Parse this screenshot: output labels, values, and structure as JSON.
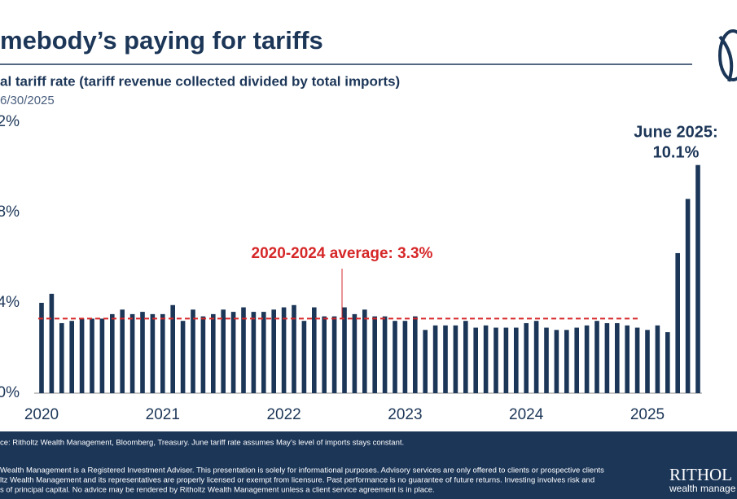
{
  "chart_data": {
    "type": "bar",
    "title": "mebody’s paying for tariffs",
    "subtitle": "al tariff rate (tariff revenue collected divided by total imports)",
    "date_note": "6/30/2025",
    "x": [
      "2020-01",
      "2020-02",
      "2020-03",
      "2020-04",
      "2020-05",
      "2020-06",
      "2020-07",
      "2020-08",
      "2020-09",
      "2020-10",
      "2020-11",
      "2020-12",
      "2021-01",
      "2021-02",
      "2021-03",
      "2021-04",
      "2021-05",
      "2021-06",
      "2021-07",
      "2021-08",
      "2021-09",
      "2021-10",
      "2021-11",
      "2021-12",
      "2022-01",
      "2022-02",
      "2022-03",
      "2022-04",
      "2022-05",
      "2022-06",
      "2022-07",
      "2022-08",
      "2022-09",
      "2022-10",
      "2022-11",
      "2022-12",
      "2023-01",
      "2023-02",
      "2023-03",
      "2023-04",
      "2023-05",
      "2023-06",
      "2023-07",
      "2023-08",
      "2023-09",
      "2023-10",
      "2023-11",
      "2023-12",
      "2024-01",
      "2024-02",
      "2024-03",
      "2024-04",
      "2024-05",
      "2024-06",
      "2024-07",
      "2024-08",
      "2024-09",
      "2024-10",
      "2024-11",
      "2024-12",
      "2025-01",
      "2025-02",
      "2025-03",
      "2025-04",
      "2025-05",
      "2025-06"
    ],
    "values": [
      4.0,
      4.4,
      3.1,
      3.2,
      3.3,
      3.3,
      3.3,
      3.5,
      3.7,
      3.5,
      3.6,
      3.5,
      3.5,
      3.9,
      3.2,
      3.7,
      3.4,
      3.5,
      3.7,
      3.6,
      3.8,
      3.6,
      3.6,
      3.7,
      3.8,
      3.9,
      3.2,
      3.8,
      3.4,
      3.4,
      3.8,
      3.5,
      3.7,
      3.4,
      3.4,
      3.2,
      3.2,
      3.4,
      2.8,
      3.0,
      3.0,
      3.0,
      3.2,
      2.9,
      3.0,
      2.9,
      2.9,
      2.9,
      3.1,
      3.2,
      2.9,
      2.8,
      2.8,
      2.9,
      3.0,
      3.2,
      3.1,
      3.1,
      3.0,
      2.9,
      2.8,
      3.0,
      2.7,
      6.2,
      8.6,
      10.1
    ],
    "color": "#1c3658",
    "xticks": [
      {
        "value": 0,
        "label": "2020"
      },
      {
        "value": 12,
        "label": "2021"
      },
      {
        "value": 24,
        "label": "2022"
      },
      {
        "value": 36,
        "label": "2023"
      },
      {
        "value": 48,
        "label": "2024"
      },
      {
        "value": 60,
        "label": "2025"
      }
    ],
    "ylim": [
      0,
      12
    ],
    "yticks": [
      {
        "value": 0,
        "label": "0%"
      },
      {
        "value": 4,
        "label": "4%"
      },
      {
        "value": 8,
        "label": "8%"
      },
      {
        "value": 12,
        "label": "12%"
      }
    ],
    "average": {
      "value": 3.3,
      "label": "2020-2024 average: 3.3%",
      "color": "#d62728",
      "start": 0,
      "end": 59
    },
    "callout": [
      "June 2025:",
      "10.1%"
    ],
    "source": "ce: Ritholtz Wealth Management, Bloomberg, Treasury. June tariff rate assumes May’s level of imports stays constant.",
    "disclaimer": [
      "Wealth Management is a Registered Investment Adviser. This presentation is solely for informational purposes. Advisory services are only offered to clients or prospective clients",
      "ltz Wealth Management and its representatives are properly licensed or exempt from licensure. Past performance is no guarantee of future returns. Investing involves risk and",
      "s of principal capital. No advice may be rendered by Ritholtz Wealth Management unless a client service agreement is in place."
    ],
    "brand": [
      "RITHOL",
      "wealth manage"
    ]
  }
}
